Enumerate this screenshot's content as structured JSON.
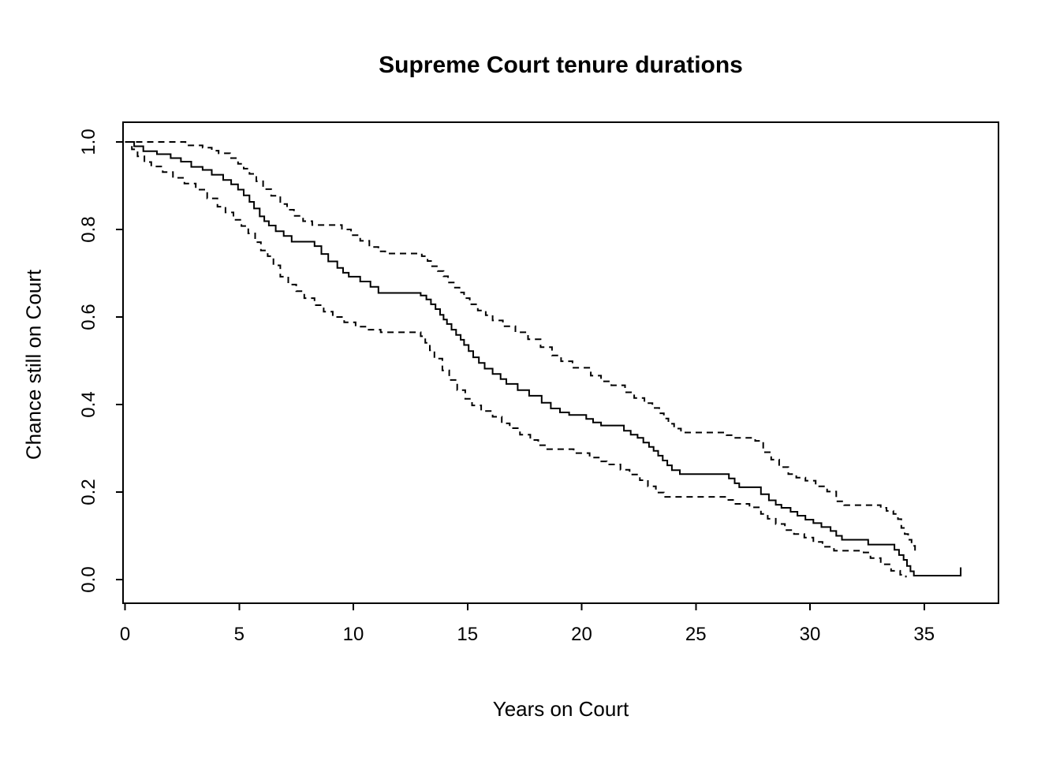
{
  "chart_data": {
    "type": "line",
    "subtype": "kaplan-meier-step-survival-curve",
    "title": "Supreme Court tenure durations",
    "xlabel": "Years on Court",
    "ylabel": "Chance still on Court",
    "xlim": [
      0,
      37.5
    ],
    "ylim": [
      0,
      1
    ],
    "x_ticks": [
      0,
      5,
      10,
      15,
      20,
      25,
      30,
      35
    ],
    "y_ticks": [
      "0.0",
      "0.2",
      "0.4",
      "0.6",
      "0.8",
      "1.0"
    ],
    "grid": false,
    "legend": "none",
    "foreground_color": "#000000",
    "background_color": "#ffffff",
    "series": [
      {
        "name": "survival-estimate",
        "style": "solid",
        "end_tick": 0.028,
        "points": [
          [
            0,
            1
          ],
          [
            0.4,
            0.99
          ],
          [
            0.8,
            0.979
          ],
          [
            1.4,
            0.972
          ],
          [
            2,
            0.963
          ],
          [
            2.45,
            0.955
          ],
          [
            2.9,
            0.943
          ],
          [
            3.4,
            0.936
          ],
          [
            3.8,
            0.925
          ],
          [
            4.3,
            0.913
          ],
          [
            4.65,
            0.903
          ],
          [
            4.95,
            0.891
          ],
          [
            5.2,
            0.878
          ],
          [
            5.45,
            0.863
          ],
          [
            5.65,
            0.848
          ],
          [
            5.9,
            0.83
          ],
          [
            6.1,
            0.819
          ],
          [
            6.3,
            0.809
          ],
          [
            6.6,
            0.796
          ],
          [
            6.95,
            0.785
          ],
          [
            7.3,
            0.772
          ],
          [
            8.3,
            0.762
          ],
          [
            8.6,
            0.744
          ],
          [
            8.9,
            0.727
          ],
          [
            9.3,
            0.712
          ],
          [
            9.55,
            0.701
          ],
          [
            9.8,
            0.692
          ],
          [
            10.3,
            0.681
          ],
          [
            10.75,
            0.669
          ],
          [
            11.1,
            0.655
          ],
          [
            12.95,
            0.649
          ],
          [
            13.2,
            0.64
          ],
          [
            13.4,
            0.629
          ],
          [
            13.6,
            0.618
          ],
          [
            13.8,
            0.605
          ],
          [
            13.95,
            0.594
          ],
          [
            14.1,
            0.584
          ],
          [
            14.3,
            0.571
          ],
          [
            14.5,
            0.559
          ],
          [
            14.7,
            0.548
          ],
          [
            14.85,
            0.536
          ],
          [
            15.05,
            0.522
          ],
          [
            15.25,
            0.508
          ],
          [
            15.5,
            0.495
          ],
          [
            15.75,
            0.482
          ],
          [
            16.1,
            0.47
          ],
          [
            16.45,
            0.458
          ],
          [
            16.7,
            0.447
          ],
          [
            17.2,
            0.433
          ],
          [
            17.7,
            0.42
          ],
          [
            18.25,
            0.404
          ],
          [
            18.65,
            0.391
          ],
          [
            19.05,
            0.382
          ],
          [
            19.45,
            0.376
          ],
          [
            20.2,
            0.367
          ],
          [
            20.5,
            0.359
          ],
          [
            20.85,
            0.352
          ],
          [
            21.85,
            0.34
          ],
          [
            22.15,
            0.331
          ],
          [
            22.45,
            0.324
          ],
          [
            22.7,
            0.313
          ],
          [
            22.95,
            0.303
          ],
          [
            23.15,
            0.294
          ],
          [
            23.35,
            0.283
          ],
          [
            23.55,
            0.272
          ],
          [
            23.75,
            0.261
          ],
          [
            23.95,
            0.25
          ],
          [
            24.3,
            0.241
          ],
          [
            26.45,
            0.231
          ],
          [
            26.7,
            0.22
          ],
          [
            26.9,
            0.211
          ],
          [
            27.85,
            0.195
          ],
          [
            28.2,
            0.181
          ],
          [
            28.5,
            0.171
          ],
          [
            28.75,
            0.164
          ],
          [
            29.15,
            0.155
          ],
          [
            29.45,
            0.146
          ],
          [
            29.8,
            0.137
          ],
          [
            30.15,
            0.129
          ],
          [
            30.5,
            0.12
          ],
          [
            30.9,
            0.111
          ],
          [
            31.15,
            0.1
          ],
          [
            31.4,
            0.091
          ],
          [
            32.55,
            0.08
          ],
          [
            33.7,
            0.068
          ],
          [
            33.9,
            0.056
          ],
          [
            34.1,
            0.045
          ],
          [
            34.25,
            0.031
          ],
          [
            34.4,
            0.019
          ],
          [
            34.55,
            0.009
          ],
          [
            36.6,
            0.009
          ]
        ]
      },
      {
        "name": "upper-95-ci",
        "style": "dashed",
        "points": [
          [
            0,
            1
          ],
          [
            2.65,
            0.992
          ],
          [
            3.4,
            0.987
          ],
          [
            3.8,
            0.98
          ],
          [
            4.1,
            0.974
          ],
          [
            4.6,
            0.963
          ],
          [
            4.95,
            0.95
          ],
          [
            5.2,
            0.939
          ],
          [
            5.45,
            0.927
          ],
          [
            5.75,
            0.91
          ],
          [
            6.05,
            0.892
          ],
          [
            6.4,
            0.877
          ],
          [
            6.8,
            0.858
          ],
          [
            7.1,
            0.845
          ],
          [
            7.4,
            0.831
          ],
          [
            7.8,
            0.819
          ],
          [
            8.2,
            0.81
          ],
          [
            9.5,
            0.8
          ],
          [
            9.9,
            0.787
          ],
          [
            10.3,
            0.774
          ],
          [
            10.7,
            0.76
          ],
          [
            11.1,
            0.75
          ],
          [
            11.4,
            0.745
          ],
          [
            13,
            0.739
          ],
          [
            13.25,
            0.728
          ],
          [
            13.45,
            0.716
          ],
          [
            13.7,
            0.705
          ],
          [
            13.95,
            0.693
          ],
          [
            14.15,
            0.679
          ],
          [
            14.45,
            0.667
          ],
          [
            14.65,
            0.656
          ],
          [
            14.85,
            0.643
          ],
          [
            15.1,
            0.629
          ],
          [
            15.45,
            0.615
          ],
          [
            15.8,
            0.604
          ],
          [
            16.1,
            0.592
          ],
          [
            16.55,
            0.579
          ],
          [
            17.1,
            0.565
          ],
          [
            17.65,
            0.549
          ],
          [
            18.2,
            0.531
          ],
          [
            18.7,
            0.512
          ],
          [
            19.1,
            0.499
          ],
          [
            19.6,
            0.484
          ],
          [
            20.4,
            0.466
          ],
          [
            20.85,
            0.453
          ],
          [
            21.3,
            0.444
          ],
          [
            21.9,
            0.428
          ],
          [
            22.3,
            0.415
          ],
          [
            22.75,
            0.403
          ],
          [
            23.1,
            0.392
          ],
          [
            23.4,
            0.38
          ],
          [
            23.6,
            0.368
          ],
          [
            23.8,
            0.356
          ],
          [
            24.05,
            0.345
          ],
          [
            24.35,
            0.336
          ],
          [
            26.35,
            0.33
          ],
          [
            26.65,
            0.324
          ],
          [
            27.6,
            0.317
          ],
          [
            27.95,
            0.291
          ],
          [
            28.3,
            0.274
          ],
          [
            28.65,
            0.257
          ],
          [
            29.05,
            0.241
          ],
          [
            29.4,
            0.233
          ],
          [
            29.8,
            0.226
          ],
          [
            30.25,
            0.213
          ],
          [
            30.75,
            0.201
          ],
          [
            31.15,
            0.179
          ],
          [
            31.5,
            0.17
          ],
          [
            33.1,
            0.164
          ],
          [
            33.35,
            0.157
          ],
          [
            33.65,
            0.15
          ],
          [
            33.85,
            0.138
          ],
          [
            34,
            0.118
          ],
          [
            34.15,
            0.104
          ],
          [
            34.3,
            0.091
          ],
          [
            34.45,
            0.077
          ],
          [
            34.6,
            0.064
          ]
        ]
      },
      {
        "name": "lower-95-ci",
        "style": "dashed",
        "points": [
          [
            0,
            1
          ],
          [
            0.3,
            0.983
          ],
          [
            0.55,
            0.967
          ],
          [
            0.85,
            0.954
          ],
          [
            1.15,
            0.944
          ],
          [
            1.65,
            0.931
          ],
          [
            2.1,
            0.918
          ],
          [
            2.6,
            0.905
          ],
          [
            3.1,
            0.891
          ],
          [
            3.6,
            0.871
          ],
          [
            4.05,
            0.852
          ],
          [
            4.4,
            0.839
          ],
          [
            4.75,
            0.822
          ],
          [
            5.1,
            0.808
          ],
          [
            5.4,
            0.791
          ],
          [
            5.7,
            0.771
          ],
          [
            5.95,
            0.752
          ],
          [
            6.25,
            0.739
          ],
          [
            6.5,
            0.718
          ],
          [
            6.8,
            0.692
          ],
          [
            7.15,
            0.674
          ],
          [
            7.5,
            0.659
          ],
          [
            7.85,
            0.643
          ],
          [
            8.3,
            0.627
          ],
          [
            8.7,
            0.612
          ],
          [
            9.1,
            0.6
          ],
          [
            9.6,
            0.588
          ],
          [
            10.1,
            0.578
          ],
          [
            10.6,
            0.571
          ],
          [
            11.2,
            0.565
          ],
          [
            12.95,
            0.556
          ],
          [
            13.15,
            0.541
          ],
          [
            13.35,
            0.524
          ],
          [
            13.55,
            0.505
          ],
          [
            13.9,
            0.478
          ],
          [
            14.2,
            0.456
          ],
          [
            14.55,
            0.433
          ],
          [
            14.9,
            0.413
          ],
          [
            15.2,
            0.398
          ],
          [
            15.6,
            0.385
          ],
          [
            16.1,
            0.372
          ],
          [
            16.5,
            0.357
          ],
          [
            16.85,
            0.346
          ],
          [
            17.3,
            0.331
          ],
          [
            17.75,
            0.319
          ],
          [
            18.1,
            0.307
          ],
          [
            18.45,
            0.298
          ],
          [
            19.65,
            0.289
          ],
          [
            20.35,
            0.279
          ],
          [
            20.75,
            0.27
          ],
          [
            21.1,
            0.263
          ],
          [
            21.7,
            0.251
          ],
          [
            22.1,
            0.24
          ],
          [
            22.55,
            0.227
          ],
          [
            22.9,
            0.213
          ],
          [
            23.25,
            0.199
          ],
          [
            23.6,
            0.189
          ],
          [
            26.35,
            0.182
          ],
          [
            26.7,
            0.173
          ],
          [
            27.35,
            0.165
          ],
          [
            27.85,
            0.15
          ],
          [
            28.15,
            0.139
          ],
          [
            28.5,
            0.127
          ],
          [
            28.9,
            0.113
          ],
          [
            29.3,
            0.104
          ],
          [
            29.75,
            0.096
          ],
          [
            30.15,
            0.086
          ],
          [
            30.55,
            0.075
          ],
          [
            31.05,
            0.066
          ],
          [
            32.35,
            0.062
          ],
          [
            32.65,
            0.049
          ],
          [
            33.1,
            0.035
          ],
          [
            33.55,
            0.02
          ],
          [
            33.95,
            0.011
          ],
          [
            34.2,
            0.005
          ]
        ]
      }
    ]
  }
}
